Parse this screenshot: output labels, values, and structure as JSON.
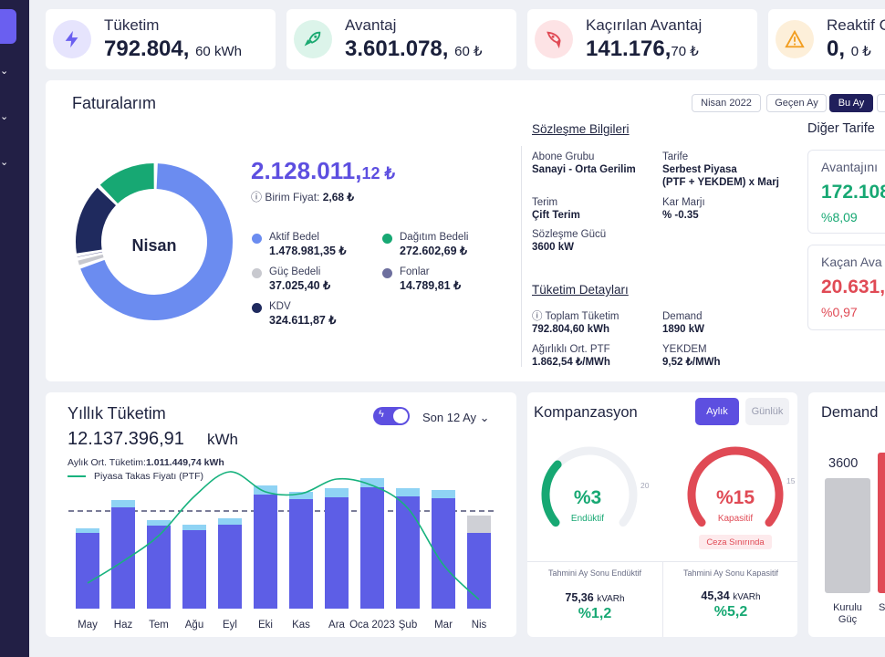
{
  "stats": [
    {
      "label": "Tüketim",
      "value": "792.804,",
      "decimal": "60",
      "unit": "kWh",
      "icon": "lightning-icon",
      "color": "#6a5ff0",
      "bg": "#e6e4fd"
    },
    {
      "label": "Avantaj",
      "value": "3.601.078,",
      "decimal": "60",
      "unit": "₺",
      "icon": "rocket-icon",
      "color": "#1aa971",
      "bg": "#dcf4ea"
    },
    {
      "label": "Kaçırılan Avantaj",
      "value": "141.176,",
      "decimal": "70",
      "unit": "₺",
      "icon": "falling-rocket-icon",
      "color": "#e04a55",
      "bg": "#fde3e5"
    },
    {
      "label": "Reaktif C",
      "value": "0,",
      "decimal": "0",
      "unit": "₺",
      "icon": "warning-icon",
      "color": "#f29d1f",
      "bg": "#fdefd9"
    }
  ],
  "invoices": {
    "title": "Faturalarım",
    "periods": [
      "Nisan 2022",
      "Geçen Ay",
      "Bu Ay"
    ],
    "active_period": "Bu Ay",
    "donut_label": "Nisan",
    "total": "2.128.011,",
    "total_decimal": "12 ₺",
    "unit_price_label": "Birim Fiyat:",
    "unit_price": "2,68 ₺",
    "legend": [
      {
        "label": "Aktif Bedel",
        "value": "1.478.981,35 ₺",
        "color": "#6b8cf0"
      },
      {
        "label": "Dağıtım Bedeli",
        "value": "272.602,69 ₺",
        "color": "#17a873"
      },
      {
        "label": "Güç Bedeli",
        "value": "37.025,40 ₺",
        "color": "#c8c9cf"
      },
      {
        "label": "Fonlar",
        "value": "14.789,81 ₺",
        "color": "#6d6f9e"
      },
      {
        "label": "KDV",
        "value": "324.611,87 ₺",
        "color": "#1f2a5e"
      }
    ],
    "contract": {
      "title": "Sözleşme Bilgileri",
      "items": [
        {
          "label": "Abone Grubu",
          "value": "Sanayi - Orta Gerilim"
        },
        {
          "label": "Tarife",
          "value": "Serbest Piyasa",
          "value2": "(PTF + YEKDEM) x Marj"
        },
        {
          "label": "Terim",
          "value": "Çift Terim"
        },
        {
          "label": "Kar Marjı",
          "value": "% -0.35"
        },
        {
          "label": "Sözleşme Gücü",
          "value": "3600 kW"
        }
      ]
    },
    "consumption": {
      "title": "Tüketim Detayları",
      "items": [
        {
          "label": "Toplam Tüketim",
          "value": "792.804,60 kWh"
        },
        {
          "label": "Demand",
          "value": "1890 kW"
        },
        {
          "label": "Ağırlıklı Ort. PTF",
          "value": "1.862,54 ₺/MWh"
        },
        {
          "label": "YEKDEM",
          "value": "9,52 ₺/MWh"
        }
      ]
    },
    "other_tariffs": {
      "title": "Diğer Tarife",
      "gain_label": "Avantajını",
      "gain_value": "172.108",
      "gain_pct": "%8,09",
      "loss_label": "Kaçan Ava",
      "loss_value": "20.631,",
      "loss_pct": "%0,97"
    }
  },
  "yearly": {
    "title": "Yıllık Tüketim",
    "total": "12.137.396,91",
    "unit": "kWh",
    "range": "Son 12 Ay",
    "avg_label": "Aylık Ort. Tüketim:",
    "avg_value": "1.011.449,74 kWh",
    "ptf_label": "Piyasa Takas Fiyatı (PTF)"
  },
  "chart_data": {
    "type": "bar",
    "categories": [
      "May",
      "Haz",
      "Tem",
      "Ağu",
      "Eyl",
      "Eki",
      "Kas",
      "Ara",
      "Oca 2023",
      "Şub",
      "Mar",
      "Nis"
    ],
    "series": [
      {
        "values": [
          83,
          111,
          91,
          86,
          92,
          125,
          120,
          122,
          133,
          123,
          121,
          83
        ]
      },
      {
        "values": [
          5,
          8,
          6,
          6,
          7,
          10,
          8,
          10,
          10,
          9,
          9,
          5
        ]
      },
      {
        "name": "Piyasa Takas Fiyatı (PTF)",
        "values": [
          28,
          52,
          80,
          123,
          150,
          128,
          126,
          142,
          135,
          110,
          48,
          10
        ]
      }
    ],
    "average_line": 107
  },
  "compensation": {
    "title": "Kompanzasyon",
    "tabs": [
      "Aylık",
      "Günlük"
    ],
    "active_tab": "Aylık",
    "inductive": {
      "value": "%3",
      "label": "Endüktif",
      "max": "20",
      "fraction": 0.15,
      "color": "#17a873"
    },
    "capacitive": {
      "value": "%15",
      "label": "Kapasitif",
      "max": "15",
      "fraction": 1.0,
      "color": "#e04a55",
      "badge": "Ceza Sınırında"
    },
    "est_ind_label": "Tahmini Ay Sonu Endüktif",
    "est_ind_value": "75,36",
    "est_ind_unit": "kVARh",
    "est_ind_pct": "%1,2",
    "est_cap_label": "Tahmini Ay Sonu Kapasitif",
    "est_cap_value": "45,34",
    "est_cap_unit": "kVARh",
    "est_cap_pct": "%5,2"
  },
  "demand": {
    "title": "Demand",
    "bar_value": "3600",
    "bar_label": "Kurulu Güç",
    "second_label": "S"
  }
}
